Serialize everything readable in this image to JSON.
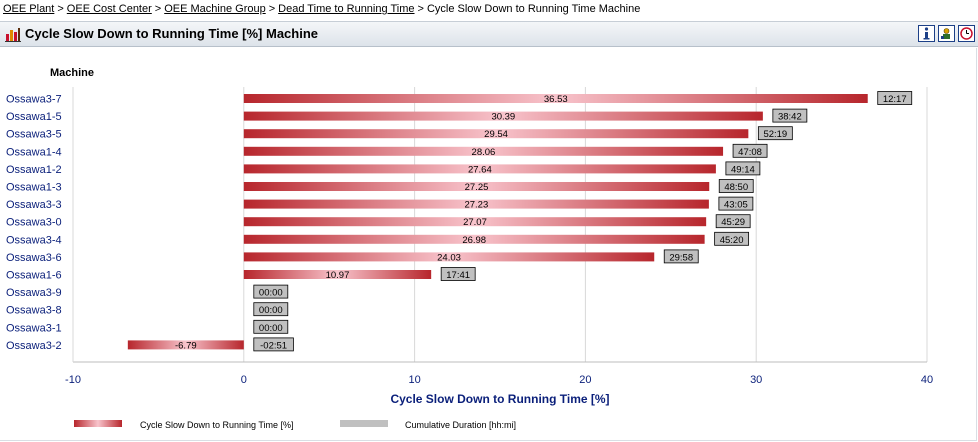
{
  "breadcrumb": {
    "items": [
      "OEE Plant",
      "OEE Cost Center",
      "OEE Machine Group",
      "Dead Time to Running Time"
    ],
    "current": "Cycle Slow Down to Running Time Machine",
    "separator": ">"
  },
  "header": {
    "title": "Cycle Slow Down to Running Time [%] Machine",
    "icons": [
      "chart-icon",
      "info-icon",
      "settings-icon",
      "clock-icon"
    ]
  },
  "colors": {
    "bar_dark": "#b7262c",
    "bar_light": "#f8c4cc",
    "duration_label_bg": "#c0c0c0",
    "axis_text": "#0a1f7a",
    "grid": "#d8d8d8"
  },
  "chart_data": {
    "type": "bar",
    "orientation": "horizontal",
    "category_axis_title": "Machine",
    "xlabel": "Cycle Slow Down to Running Time [%]",
    "xlim": [
      -10,
      40
    ],
    "xticks": [
      "-10",
      "0",
      "10",
      "20",
      "30",
      "40"
    ],
    "grid": true,
    "legend_position": "bottom",
    "categories": [
      "Ossawa3-7",
      "Ossawa1-5",
      "Ossawa3-5",
      "Ossawa1-4",
      "Ossawa1-2",
      "Ossawa1-3",
      "Ossawa3-3",
      "Ossawa3-0",
      "Ossawa3-4",
      "Ossawa3-6",
      "Ossawa1-6",
      "Ossawa3-9",
      "Ossawa3-8",
      "Ossawa3-1",
      "Ossawa3-2"
    ],
    "series": [
      {
        "name": "Cycle Slow Down to Running Time [%]",
        "values": [
          36.53,
          30.39,
          29.54,
          28.06,
          27.64,
          27.25,
          27.23,
          27.07,
          26.98,
          24.03,
          10.97,
          0,
          0,
          0,
          -6.79
        ],
        "labels": [
          "36.53",
          "30.39",
          "29.54",
          "28.06",
          "27.64",
          "27.25",
          "27.23",
          "27.07",
          "26.98",
          "24.03",
          "10.97",
          "",
          "",
          "",
          "-6.79"
        ]
      },
      {
        "name": "Cumulative Duration [hh:mi]",
        "labels": [
          "12:17",
          "38:42",
          "52:19",
          "47:08",
          "49:14",
          "48:50",
          "43:05",
          "45:29",
          "45:20",
          "29:58",
          "17:41",
          "00:00",
          "00:00",
          "00:00",
          "-02:51"
        ]
      }
    ]
  }
}
